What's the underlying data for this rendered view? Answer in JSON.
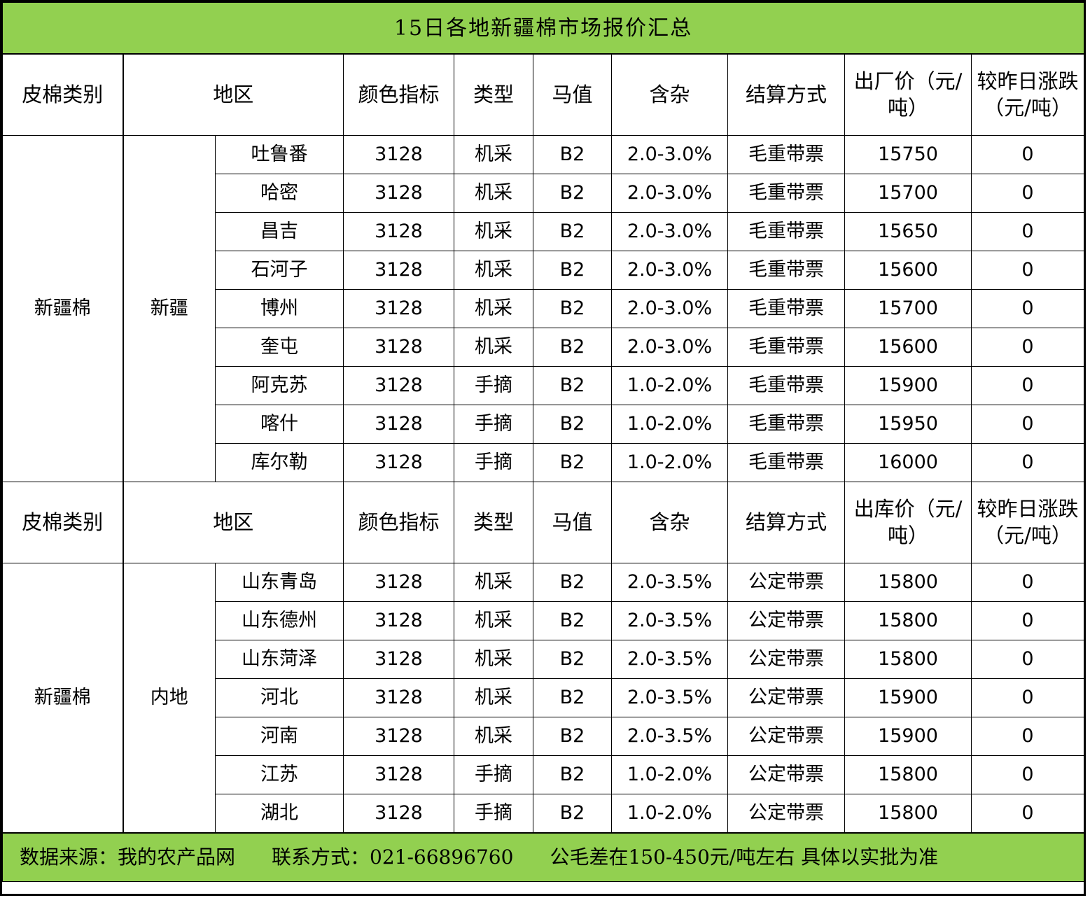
{
  "title": "15日各地新疆棉市场报价汇总",
  "colors": {
    "header_bg": "#92d050",
    "border": "#000000"
  },
  "sections": [
    {
      "header": [
        "皮棉类别",
        "地区",
        "颜色指标",
        "类型",
        "马值",
        "含杂",
        "结算方式",
        "出厂价（元/吨）",
        "较昨日涨跌（元/吨）"
      ],
      "category": "新疆棉",
      "region": "新疆",
      "rows": [
        {
          "city": "吐鲁番",
          "color": "3128",
          "type": "机采",
          "mic": "B2",
          "trash": "2.0-3.0%",
          "settle": "毛重带票",
          "price": "15750",
          "change": "0"
        },
        {
          "city": "哈密",
          "color": "3128",
          "type": "机采",
          "mic": "B2",
          "trash": "2.0-3.0%",
          "settle": "毛重带票",
          "price": "15700",
          "change": "0"
        },
        {
          "city": "昌吉",
          "color": "3128",
          "type": "机采",
          "mic": "B2",
          "trash": "2.0-3.0%",
          "settle": "毛重带票",
          "price": "15650",
          "change": "0"
        },
        {
          "city": "石河子",
          "color": "3128",
          "type": "机采",
          "mic": "B2",
          "trash": "2.0-3.0%",
          "settle": "毛重带票",
          "price": "15600",
          "change": "0"
        },
        {
          "city": "博州",
          "color": "3128",
          "type": "机采",
          "mic": "B2",
          "trash": "2.0-3.0%",
          "settle": "毛重带票",
          "price": "15700",
          "change": "0"
        },
        {
          "city": "奎屯",
          "color": "3128",
          "type": "机采",
          "mic": "B2",
          "trash": "2.0-3.0%",
          "settle": "毛重带票",
          "price": "15600",
          "change": "0"
        },
        {
          "city": "阿克苏",
          "color": "3128",
          "type": "手摘",
          "mic": "B2",
          "trash": "1.0-2.0%",
          "settle": "毛重带票",
          "price": "15900",
          "change": "0"
        },
        {
          "city": "喀什",
          "color": "3128",
          "type": "手摘",
          "mic": "B2",
          "trash": "1.0-2.0%",
          "settle": "毛重带票",
          "price": "15950",
          "change": "0"
        },
        {
          "city": "库尔勒",
          "color": "3128",
          "type": "手摘",
          "mic": "B2",
          "trash": "1.0-2.0%",
          "settle": "毛重带票",
          "price": "16000",
          "change": "0"
        }
      ]
    },
    {
      "header": [
        "皮棉类别",
        "地区",
        "颜色指标",
        "类型",
        "马值",
        "含杂",
        "结算方式",
        "出库价（元/吨）",
        "较昨日涨跌（元/吨）"
      ],
      "category": "新疆棉",
      "region": "内地",
      "rows": [
        {
          "city": "山东青岛",
          "color": "3128",
          "type": "机采",
          "mic": "B2",
          "trash": "2.0-3.5%",
          "settle": "公定带票",
          "price": "15800",
          "change": "0"
        },
        {
          "city": "山东德州",
          "color": "3128",
          "type": "机采",
          "mic": "B2",
          "trash": "2.0-3.5%",
          "settle": "公定带票",
          "price": "15800",
          "change": "0"
        },
        {
          "city": "山东菏泽",
          "color": "3128",
          "type": "机采",
          "mic": "B2",
          "trash": "2.0-3.5%",
          "settle": "公定带票",
          "price": "15800",
          "change": "0"
        },
        {
          "city": "河北",
          "color": "3128",
          "type": "机采",
          "mic": "B2",
          "trash": "2.0-3.5%",
          "settle": "公定带票",
          "price": "15900",
          "change": "0"
        },
        {
          "city": "河南",
          "color": "3128",
          "type": "机采",
          "mic": "B2",
          "trash": "2.0-3.5%",
          "settle": "公定带票",
          "price": "15900",
          "change": "0"
        },
        {
          "city": "江苏",
          "color": "3128",
          "type": "手摘",
          "mic": "B2",
          "trash": "1.0-2.0%",
          "settle": "公定带票",
          "price": "15800",
          "change": "0"
        },
        {
          "city": "湖北",
          "color": "3128",
          "type": "手摘",
          "mic": "B2",
          "trash": "1.0-2.0%",
          "settle": "公定带票",
          "price": "15800",
          "change": "0"
        }
      ]
    }
  ],
  "footer": {
    "source": "数据来源：我的农产品网",
    "contact": "联系方式：021-66896760",
    "note": "公毛差在150-450元/吨左右 具体以实批为准"
  }
}
